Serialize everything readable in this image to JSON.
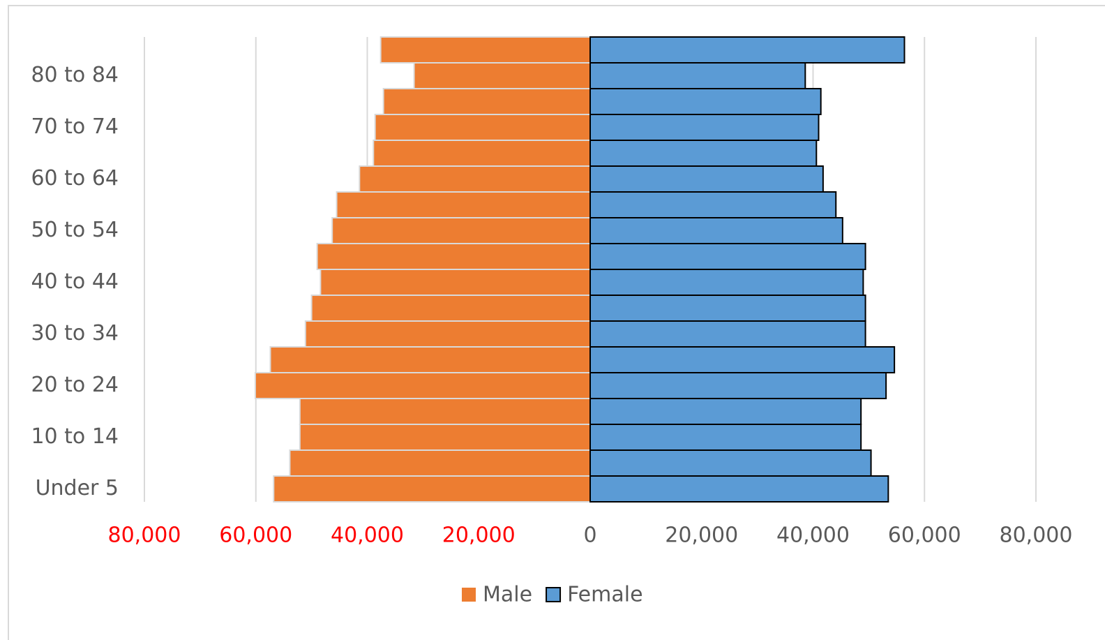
{
  "chart_data": {
    "type": "pyramid",
    "categories": [
      "Under 5",
      null,
      "10 to 14",
      null,
      "20 to 24",
      null,
      "30 to 34",
      null,
      "40 to 44",
      null,
      "50 to 54",
      null,
      "60 to 64",
      null,
      "70 to 74",
      null,
      "80 to 84",
      null
    ],
    "series": [
      {
        "name": "Male",
        "color": "#ed7d31",
        "edgecolor": "#d9d9d9",
        "values": [
          -56800,
          -53900,
          -52100,
          -52100,
          -60100,
          -57400,
          -51100,
          -50000,
          -48400,
          -49000,
          -46300,
          -45500,
          -41400,
          -38900,
          -38600,
          -37100,
          -31600,
          -37600
        ]
      },
      {
        "name": "Female",
        "color": "#5b9bd5",
        "edgecolor": "#000000",
        "values": [
          53500,
          50400,
          48600,
          48600,
          53100,
          54600,
          49400,
          49400,
          49000,
          49400,
          45300,
          44100,
          41800,
          40600,
          41000,
          41400,
          38600,
          56400
        ]
      }
    ],
    "xlim": [
      -80000,
      80000
    ],
    "xticks": [
      {
        "value": -80000,
        "label": "80,000"
      },
      {
        "value": -60000,
        "label": "60,000"
      },
      {
        "value": -40000,
        "label": "40,000"
      },
      {
        "value": -20000,
        "label": "20,000"
      },
      0,
      {
        "value": 20000,
        "label": "20,000"
      },
      {
        "value": 40000,
        "label": "40,000"
      },
      {
        "value": 60000,
        "label": "60,000"
      },
      {
        "value": 80000,
        "label": "80,000"
      }
    ],
    "negative_tick_color": "#ff0000",
    "grid": true,
    "legend": "bottom"
  }
}
